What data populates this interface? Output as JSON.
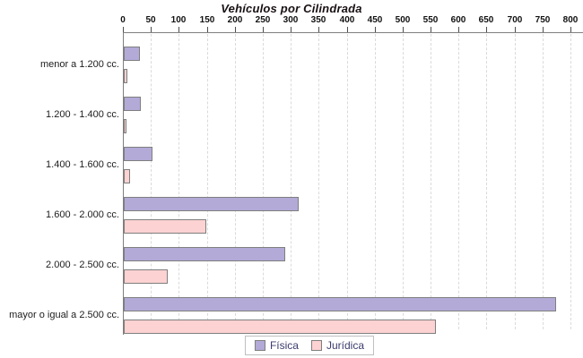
{
  "chart_data": {
    "type": "bar",
    "orientation": "horizontal",
    "title": "Vehículos por Cilindrada",
    "categories": [
      "menor a 1.200 cc.",
      "1.200 - 1.400 cc.",
      "1.400 - 1.600 cc.",
      "1.600 - 2.000 cc.",
      "2.000 - 2.500 cc.",
      "mayor o igual a 2.500 cc."
    ],
    "series": [
      {
        "name": "Física",
        "color": "#b3aad8",
        "values": [
          25,
          28,
          48,
          310,
          285,
          770
        ]
      },
      {
        "name": "Jurídica",
        "color": "#fcd2d2",
        "values": [
          3,
          1,
          8,
          145,
          75,
          555
        ]
      }
    ],
    "value_axis": {
      "min": 0,
      "max": 800,
      "tick_step": 50,
      "position": "top",
      "ticks": [
        0,
        50,
        100,
        150,
        200,
        250,
        300,
        350,
        400,
        450,
        500,
        550,
        600,
        650,
        700,
        750,
        800
      ]
    },
    "grid": "vertical-dashed",
    "legend_position": "bottom",
    "colors": {
      "bar_border": "#7f7f7f",
      "axis": "#7f7f7f",
      "gridline": "#dadada",
      "legend_text": "#3b3b6e",
      "title_text": "#181012"
    }
  }
}
